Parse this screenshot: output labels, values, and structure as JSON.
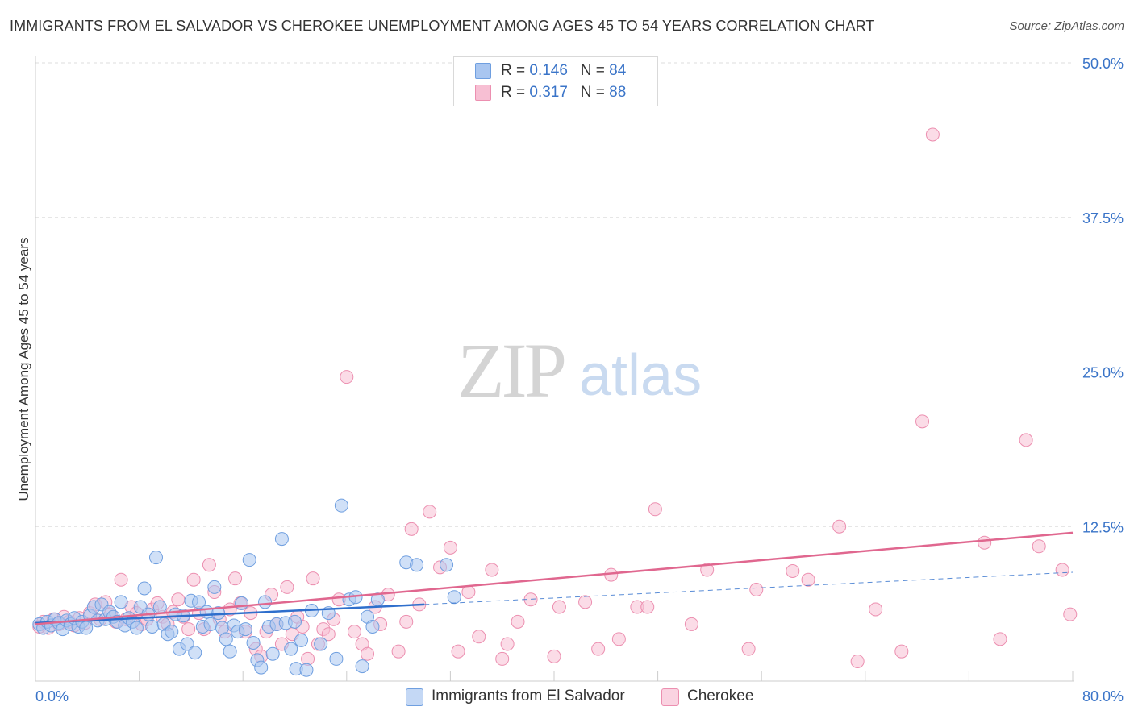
{
  "header": {
    "title": "IMMIGRANTS FROM EL SALVADOR VS CHEROKEE UNEMPLOYMENT AMONG AGES 45 TO 54 YEARS CORRELATION CHART",
    "source": "Source: ZipAtlas.com"
  },
  "watermark": {
    "zip": "ZIP",
    "atlas": "atlas"
  },
  "legend": {
    "series1": {
      "r_label": "R = ",
      "r_value": "0.146",
      "n_label": "N = ",
      "n_value": "84"
    },
    "series2": {
      "r_label": "R = ",
      "r_value": "0.317",
      "n_label": "N = ",
      "n_value": "88"
    }
  },
  "chart_data": {
    "type": "scatter",
    "title": "IMMIGRANTS FROM EL SALVADOR VS CHEROKEE UNEMPLOYMENT AMONG AGES 45 TO 54 YEARS CORRELATION CHART",
    "xlabel": "",
    "ylabel": "Unemployment Among Ages 45 to 54 years",
    "xlim": [
      0,
      80
    ],
    "ylim": [
      0,
      52
    ],
    "x_tick_labels": [
      {
        "value": 0,
        "label": "0.0%"
      },
      {
        "value": 80,
        "label": "80.0%"
      }
    ],
    "y_ticks": [
      {
        "value": 12.5,
        "label": "12.5%"
      },
      {
        "value": 25,
        "label": "25.0%"
      },
      {
        "value": 37.5,
        "label": "37.5%"
      },
      {
        "value": 50,
        "label": "50.0%"
      }
    ],
    "colors": {
      "blue_fill": "#a9c6f0",
      "blue_stroke": "#6f9fe0",
      "blue_line": "#2f6fcc",
      "pink_fill": "#f7bfd3",
      "pink_stroke": "#ec8fb0",
      "pink_line": "#e0678f",
      "grid": "#dddddd",
      "tick_text": "#3a74c8"
    },
    "series": [
      {
        "name": "Immigrants from El Salvador",
        "R": 0.146,
        "N": 84,
        "trend": {
          "x0": 0,
          "y0": 4.7,
          "x1": 30,
          "y1": 6.2,
          "dashed_to_x": 80,
          "dashed_to_y": 8.8
        },
        "points": [
          [
            0.3,
            4.6
          ],
          [
            0.6,
            4.3
          ],
          [
            0.9,
            4.8
          ],
          [
            1.2,
            4.5
          ],
          [
            1.5,
            5.0
          ],
          [
            1.8,
            4.7
          ],
          [
            2.1,
            4.2
          ],
          [
            2.4,
            4.9
          ],
          [
            2.7,
            4.6
          ],
          [
            3.0,
            5.1
          ],
          [
            3.3,
            4.4
          ],
          [
            3.6,
            4.8
          ],
          [
            3.9,
            4.3
          ],
          [
            4.2,
            5.3
          ],
          [
            4.5,
            6.0
          ],
          [
            4.8,
            4.9
          ],
          [
            5.1,
            6.2
          ],
          [
            5.4,
            5.0
          ],
          [
            5.7,
            5.6
          ],
          [
            6.0,
            5.2
          ],
          [
            6.3,
            4.8
          ],
          [
            6.6,
            6.4
          ],
          [
            6.9,
            4.5
          ],
          [
            7.2,
            5.1
          ],
          [
            7.5,
            4.8
          ],
          [
            7.8,
            4.3
          ],
          [
            8.1,
            6.0
          ],
          [
            8.4,
            7.5
          ],
          [
            8.7,
            5.4
          ],
          [
            9.0,
            4.4
          ],
          [
            9.3,
            10.0
          ],
          [
            9.6,
            6.0
          ],
          [
            9.9,
            4.6
          ],
          [
            10.2,
            3.8
          ],
          [
            10.5,
            4.0
          ],
          [
            10.8,
            5.4
          ],
          [
            11.1,
            2.6
          ],
          [
            11.4,
            5.3
          ],
          [
            11.7,
            3.0
          ],
          [
            12.0,
            6.5
          ],
          [
            12.3,
            2.3
          ],
          [
            12.6,
            6.4
          ],
          [
            12.9,
            4.4
          ],
          [
            13.2,
            5.6
          ],
          [
            13.5,
            4.6
          ],
          [
            13.8,
            7.6
          ],
          [
            14.1,
            5.5
          ],
          [
            14.4,
            4.3
          ],
          [
            14.7,
            3.4
          ],
          [
            15.0,
            2.4
          ],
          [
            15.3,
            4.5
          ],
          [
            15.6,
            4.0
          ],
          [
            15.9,
            6.3
          ],
          [
            16.2,
            4.2
          ],
          [
            16.5,
            9.8
          ],
          [
            16.8,
            3.1
          ],
          [
            17.1,
            1.7
          ],
          [
            17.4,
            1.1
          ],
          [
            17.7,
            6.4
          ],
          [
            18.0,
            4.4
          ],
          [
            18.3,
            2.2
          ],
          [
            18.6,
            4.6
          ],
          [
            19.0,
            11.5
          ],
          [
            19.3,
            4.7
          ],
          [
            19.7,
            2.6
          ],
          [
            20.1,
            1.0
          ],
          [
            20.5,
            3.3
          ],
          [
            20.9,
            0.9
          ],
          [
            21.3,
            5.7
          ],
          [
            22.0,
            3.0
          ],
          [
            22.6,
            5.5
          ],
          [
            23.2,
            1.8
          ],
          [
            23.6,
            14.2
          ],
          [
            24.2,
            6.6
          ],
          [
            24.7,
            6.8
          ],
          [
            25.2,
            1.2
          ],
          [
            25.6,
            5.2
          ],
          [
            26.0,
            4.4
          ],
          [
            26.4,
            6.6
          ],
          [
            28.6,
            9.6
          ],
          [
            29.4,
            9.4
          ],
          [
            31.7,
            9.4
          ],
          [
            32.3,
            6.8
          ],
          [
            20.0,
            4.8
          ]
        ]
      },
      {
        "name": "Cherokee",
        "R": 0.317,
        "N": 88,
        "trend": {
          "x0": 0,
          "y0": 4.6,
          "x1": 80,
          "y1": 12.0
        },
        "points": [
          [
            0.3,
            4.4
          ],
          [
            0.6,
            4.8
          ],
          [
            1.0,
            4.3
          ],
          [
            1.4,
            5.0
          ],
          [
            1.8,
            4.6
          ],
          [
            2.2,
            5.2
          ],
          [
            2.6,
            4.8
          ],
          [
            3.0,
            4.5
          ],
          [
            3.4,
            5.1
          ],
          [
            3.8,
            4.7
          ],
          [
            4.2,
            5.5
          ],
          [
            4.6,
            6.2
          ],
          [
            5.0,
            5.0
          ],
          [
            5.4,
            6.4
          ],
          [
            5.8,
            5.4
          ],
          [
            6.2,
            4.8
          ],
          [
            6.6,
            8.2
          ],
          [
            7.0,
            5.0
          ],
          [
            7.4,
            6.0
          ],
          [
            7.8,
            5.5
          ],
          [
            8.2,
            4.6
          ],
          [
            8.6,
            5.0
          ],
          [
            9.0,
            5.8
          ],
          [
            9.4,
            6.3
          ],
          [
            9.8,
            5.2
          ],
          [
            10.2,
            4.6
          ],
          [
            10.6,
            5.6
          ],
          [
            11.0,
            6.6
          ],
          [
            11.4,
            5.2
          ],
          [
            11.8,
            4.2
          ],
          [
            12.2,
            8.2
          ],
          [
            12.6,
            5.5
          ],
          [
            13.0,
            4.2
          ],
          [
            13.4,
            9.4
          ],
          [
            13.8,
            7.2
          ],
          [
            14.2,
            5.0
          ],
          [
            14.6,
            4.0
          ],
          [
            15.0,
            5.8
          ],
          [
            15.4,
            8.3
          ],
          [
            15.8,
            6.3
          ],
          [
            16.2,
            4.0
          ],
          [
            16.6,
            5.5
          ],
          [
            17.0,
            2.6
          ],
          [
            17.4,
            2.0
          ],
          [
            17.8,
            4.0
          ],
          [
            18.2,
            7.0
          ],
          [
            18.6,
            4.6
          ],
          [
            19.0,
            3.0
          ],
          [
            19.4,
            7.6
          ],
          [
            19.8,
            3.8
          ],
          [
            20.2,
            5.2
          ],
          [
            20.6,
            4.4
          ],
          [
            21.0,
            1.8
          ],
          [
            21.4,
            8.3
          ],
          [
            21.8,
            3.0
          ],
          [
            22.2,
            4.2
          ],
          [
            22.6,
            3.8
          ],
          [
            23.0,
            5.0
          ],
          [
            23.4,
            6.6
          ],
          [
            24.0,
            24.6
          ],
          [
            24.6,
            4.0
          ],
          [
            25.2,
            3.0
          ],
          [
            25.6,
            2.2
          ],
          [
            26.2,
            6.0
          ],
          [
            26.6,
            4.6
          ],
          [
            27.2,
            7.0
          ],
          [
            28.0,
            2.4
          ],
          [
            28.6,
            4.8
          ],
          [
            29.0,
            12.3
          ],
          [
            29.6,
            6.2
          ],
          [
            30.4,
            13.7
          ],
          [
            31.2,
            9.2
          ],
          [
            32.0,
            10.8
          ],
          [
            32.6,
            2.4
          ],
          [
            33.4,
            7.2
          ],
          [
            34.2,
            3.6
          ],
          [
            35.2,
            9.0
          ],
          [
            36.4,
            3.0
          ],
          [
            37.2,
            4.8
          ],
          [
            38.2,
            6.6
          ],
          [
            40.4,
            6.0
          ],
          [
            42.4,
            6.4
          ],
          [
            43.4,
            2.6
          ],
          [
            44.4,
            8.6
          ],
          [
            46.4,
            6.0
          ],
          [
            47.2,
            6.0
          ],
          [
            47.8,
            13.9
          ],
          [
            50.6,
            4.6
          ]
        ]
      }
    ],
    "extra_pink_points": [
      [
        51.8,
        9.0
      ],
      [
        55.6,
        7.4
      ],
      [
        58.4,
        8.9
      ],
      [
        59.6,
        8.2
      ],
      [
        62.0,
        12.5
      ],
      [
        64.8,
        5.8
      ],
      [
        66.8,
        2.4
      ],
      [
        68.4,
        21.0
      ],
      [
        69.2,
        44.2
      ],
      [
        73.2,
        11.2
      ],
      [
        74.4,
        3.4
      ],
      [
        76.4,
        19.5
      ],
      [
        77.4,
        10.9
      ],
      [
        79.2,
        9.0
      ],
      [
        79.8,
        5.4
      ],
      [
        63.4,
        1.6
      ],
      [
        55.0,
        2.6
      ],
      [
        45.0,
        3.4
      ],
      [
        40.0,
        2.0
      ],
      [
        36.0,
        1.8
      ]
    ],
    "legend_position": "bottom-center"
  },
  "bottom_legend": {
    "series1": "Immigrants from El Salvador",
    "series2": "Cherokee"
  }
}
